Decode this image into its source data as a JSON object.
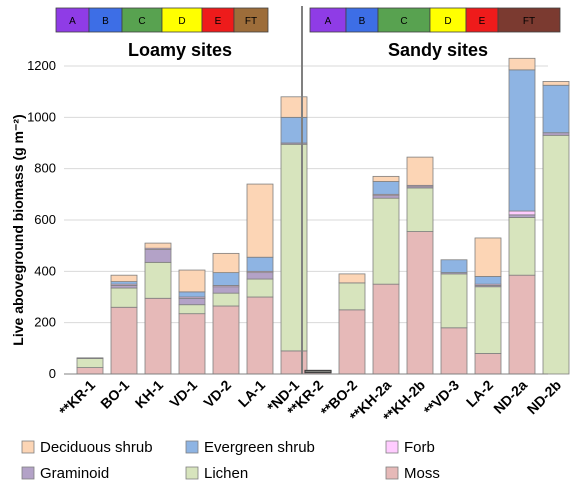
{
  "chart_data": {
    "type": "bar",
    "stacked": true,
    "ylabel": "Live aboveground  biomass (g m⁻²)",
    "ylim": [
      0,
      1200
    ],
    "yticks": [
      0,
      200,
      400,
      600,
      800,
      1000,
      1200
    ],
    "grid": true,
    "legend_position": "bottom",
    "groups": [
      {
        "title": "Loamy sites",
        "categories": [
          "**KR-1",
          "BO-1",
          "KH-1",
          "VD-1",
          "VD-2",
          "LA-1",
          "*ND-1"
        ],
        "bands": [
          {
            "label": "A",
            "color": "#8f3ce6"
          },
          {
            "label": "B",
            "color": "#3d6ee6"
          },
          {
            "label": "C",
            "color": "#58a250"
          },
          {
            "label": "D",
            "color": "#ffff00"
          },
          {
            "label": "E",
            "color": "#ee1b1b"
          },
          {
            "label": "FT",
            "color": "#9d6d3a"
          }
        ]
      },
      {
        "title": "Sandy sites",
        "categories": [
          "**KR-2",
          "**BO-2",
          "**KH-2a",
          "**KH-2b",
          "**VD-3",
          "LA-2",
          "ND-2a",
          "ND-2b"
        ],
        "bands": [
          {
            "label": "A",
            "color": "#8f3ce6"
          },
          {
            "label": "B",
            "color": "#3d6ee6"
          },
          {
            "label": "C",
            "color": "#58a250"
          },
          {
            "label": "D",
            "color": "#ffff00"
          },
          {
            "label": "E",
            "color": "#ee1b1b"
          },
          {
            "label": "FT",
            "color": "#7b3a30"
          }
        ]
      }
    ],
    "series": [
      {
        "name": "Moss",
        "color": "#e6b9b8",
        "values": [
          25,
          260,
          295,
          235,
          265,
          300,
          90,
          5,
          250,
          350,
          555,
          180,
          80,
          385,
          0
        ]
      },
      {
        "name": "Lichen",
        "color": "#d7e4bd",
        "values": [
          35,
          75,
          140,
          35,
          50,
          70,
          805,
          5,
          105,
          335,
          170,
          210,
          260,
          225,
          930
        ]
      },
      {
        "name": "Graminoid",
        "color": "#b3a2c7",
        "values": [
          3,
          10,
          50,
          25,
          25,
          25,
          5,
          0,
          0,
          10,
          5,
          5,
          5,
          10,
          10
        ]
      },
      {
        "name": "Forb",
        "color": "#ffccff",
        "values": [
          0,
          5,
          5,
          5,
          5,
          5,
          0,
          0,
          0,
          5,
          5,
          0,
          5,
          15,
          0
        ]
      },
      {
        "name": "Evergreen shrub",
        "color": "#8eb4e3",
        "values": [
          0,
          10,
          0,
          20,
          50,
          55,
          100,
          0,
          0,
          50,
          0,
          50,
          30,
          550,
          185
        ]
      },
      {
        "name": "Deciduous shrub",
        "color": "#fcd5b5",
        "values": [
          0,
          25,
          20,
          85,
          75,
          285,
          80,
          0,
          35,
          20,
          110,
          0,
          150,
          45,
          15
        ]
      }
    ],
    "legend_order": [
      "Deciduous shrub",
      "Evergreen shrub",
      "Forb",
      "Graminoid",
      "Lichen",
      "Moss"
    ]
  }
}
